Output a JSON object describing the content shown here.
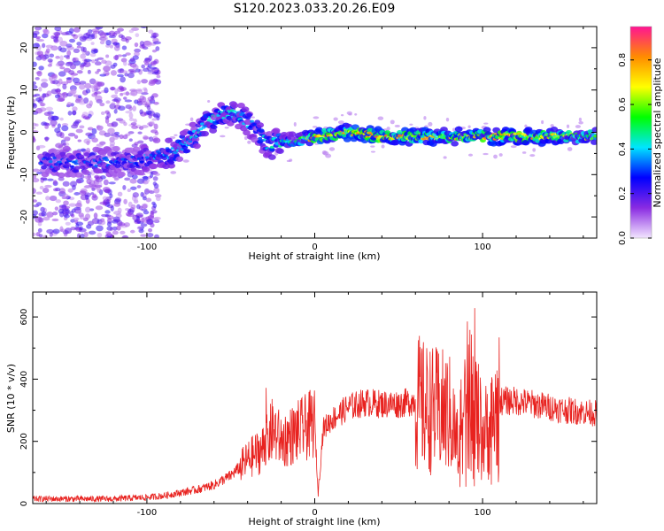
{
  "title": "S120.2023.033.20.26.E09",
  "chart_data": [
    {
      "type": "heatmap",
      "xlabel": "Height of straight line (km)",
      "ylabel": "Frequency (Hz)",
      "xlim": [
        -168,
        168
      ],
      "ylim": [
        -25,
        25
      ],
      "xticks": [
        -100,
        0,
        100
      ],
      "yticks": [
        -20,
        -10,
        0,
        10,
        20
      ],
      "colorbar": {
        "label": "Normalized spectral amplitude",
        "range": [
          0,
          0.95
        ],
        "ticks": [
          0.0,
          0.2,
          0.4,
          0.6,
          0.8
        ],
        "colors": [
          "#f3e6ff",
          "#8a2be2",
          "#0000ff",
          "#00e5ff",
          "#00ff00",
          "#ffff00",
          "#ff8c00",
          "#ff1493"
        ]
      },
      "ridge": [
        {
          "x": -105,
          "y": -7,
          "a": 0.3
        },
        {
          "x": -95,
          "y": -5,
          "a": 0.35
        },
        {
          "x": -85,
          "y": -5,
          "a": 0.4
        },
        {
          "x": -75,
          "y": -2,
          "a": 0.4
        },
        {
          "x": -65,
          "y": 2,
          "a": 0.4
        },
        {
          "x": -55,
          "y": 4,
          "a": 0.4
        },
        {
          "x": -45,
          "y": 4,
          "a": 0.4
        },
        {
          "x": -35,
          "y": 1,
          "a": 0.35
        },
        {
          "x": -28,
          "y": -3,
          "a": 0.4
        },
        {
          "x": -18,
          "y": -2,
          "a": 0.45
        },
        {
          "x": -10,
          "y": -2,
          "a": 0.45
        },
        {
          "x": 0,
          "y": -1,
          "a": 0.8
        },
        {
          "x": 20,
          "y": 0,
          "a": 0.75
        },
        {
          "x": 40,
          "y": -1,
          "a": 0.8
        },
        {
          "x": 60,
          "y": -1,
          "a": 0.75
        },
        {
          "x": 80,
          "y": -1,
          "a": 0.7
        },
        {
          "x": 100,
          "y": -1,
          "a": 0.75
        },
        {
          "x": 120,
          "y": -1,
          "a": 0.8
        },
        {
          "x": 140,
          "y": -1,
          "a": 0.7
        },
        {
          "x": 168,
          "y": -1,
          "a": 0.55
        }
      ]
    },
    {
      "type": "line",
      "xlabel": "Height of straight line (km)",
      "ylabel": "SNR (10 * v/v)",
      "xlim": [
        -168,
        168
      ],
      "ylim": [
        0,
        680
      ],
      "xticks": [
        -100,
        0,
        100
      ],
      "yticks": [
        0,
        200,
        400,
        600
      ],
      "color": "#e8221f",
      "series": [
        {
          "x": [
            -168,
            -140,
            -120,
            -100,
            -90,
            -80,
            -70,
            -60,
            -50,
            -40,
            -30,
            -25,
            -20,
            -10,
            0,
            2,
            5,
            10,
            20,
            30,
            40,
            50,
            60,
            65,
            70,
            80,
            85,
            90,
            95,
            100,
            105,
            110,
            120,
            130,
            140,
            150,
            168
          ],
          "y": [
            15,
            15,
            15,
            20,
            25,
            35,
            45,
            60,
            90,
            140,
            180,
            240,
            200,
            230,
            260,
            30,
            240,
            270,
            310,
            325,
            320,
            320,
            330,
            310,
            300,
            290,
            200,
            350,
            310,
            220,
            250,
            330,
            330,
            320,
            310,
            300,
            290
          ]
        }
      ]
    }
  ]
}
